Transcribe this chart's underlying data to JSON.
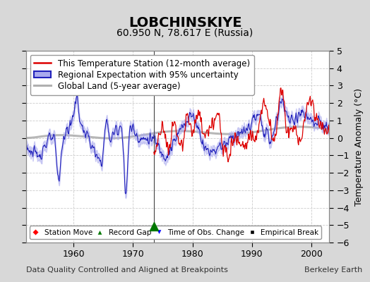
{
  "title": "LOBCHINSKIYE",
  "subtitle": "60.950 N, 78.617 E (Russia)",
  "ylabel": "Temperature Anomaly (°C)",
  "xlabel_note": "Data Quality Controlled and Aligned at Breakpoints",
  "credit": "Berkeley Earth",
  "ylim": [
    -6,
    5
  ],
  "yticks": [
    -6,
    -5,
    -4,
    -3,
    -2,
    -1,
    0,
    1,
    2,
    3,
    4,
    5
  ],
  "xlim": [
    1952,
    2003
  ],
  "xticks": [
    1960,
    1970,
    1980,
    1990,
    2000
  ],
  "bg_color": "#d8d8d8",
  "plot_bg_color": "#ffffff",
  "station_color": "#dd0000",
  "regional_color": "#2222bb",
  "regional_fill_color": "#aaaaee",
  "global_color": "#b0b0b0",
  "record_gap_x": 1973.5,
  "record_gap_y": -5.05,
  "title_fontsize": 14,
  "subtitle_fontsize": 10,
  "legend_fontsize": 8.5,
  "tick_fontsize": 9,
  "note_fontsize": 8
}
